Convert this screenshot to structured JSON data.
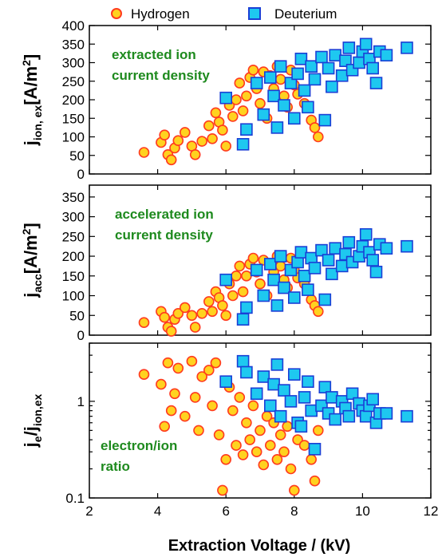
{
  "legend": {
    "position": "top",
    "items": [
      {
        "label": "Hydrogen",
        "marker": "circle",
        "fill": "#ffd21f",
        "stroke": "#ff3b1f"
      },
      {
        "label": "Deuterium",
        "marker": "square",
        "fill": "#1ec8f0",
        "stroke": "#1a3fd6"
      }
    ]
  },
  "xaxis": {
    "label": "Extraction Voltage / (kV)",
    "min": 2,
    "max": 12,
    "ticks": [
      2,
      4,
      6,
      8,
      10,
      12
    ]
  },
  "colors": {
    "hydrogen_fill": "#ffd21f",
    "hydrogen_edge": "#ff3b1f",
    "deuterium_fill": "#1ec8f0",
    "deuterium_edge": "#1a3fd6",
    "annotation": "#1e8a1e"
  },
  "chart_data": [
    {
      "type": "scatter",
      "ylabel_main": "j",
      "ylabel_sub": "ion, ex",
      "ylabel_unit": "[A/m",
      "ylabel_unit_sup": "2",
      "ylabel_unit_end": "]",
      "ylim": [
        0,
        400
      ],
      "yscale": "linear",
      "yticks": [
        0,
        50,
        100,
        150,
        200,
        250,
        300,
        350,
        400
      ],
      "annotation": [
        "extracted ion",
        "current density"
      ],
      "series": [
        {
          "name": "Hydrogen",
          "points": [
            [
              3.6,
              58
            ],
            [
              4.1,
              85
            ],
            [
              4.2,
              105
            ],
            [
              4.3,
              52
            ],
            [
              4.4,
              38
            ],
            [
              4.5,
              70
            ],
            [
              4.6,
              90
            ],
            [
              4.8,
              112
            ],
            [
              5.0,
              75
            ],
            [
              5.1,
              52
            ],
            [
              5.3,
              88
            ],
            [
              5.5,
              130
            ],
            [
              5.6,
              95
            ],
            [
              5.7,
              165
            ],
            [
              5.8,
              140
            ],
            [
              5.9,
              118
            ],
            [
              6.0,
              75
            ],
            [
              6.1,
              185
            ],
            [
              6.2,
              155
            ],
            [
              6.3,
              200
            ],
            [
              6.4,
              245
            ],
            [
              6.5,
              170
            ],
            [
              6.6,
              210
            ],
            [
              6.7,
              260
            ],
            [
              6.8,
              280
            ],
            [
              6.9,
              230
            ],
            [
              7.0,
              190
            ],
            [
              7.1,
              275
            ],
            [
              7.2,
              150
            ],
            [
              7.3,
              265
            ],
            [
              7.4,
              230
            ],
            [
              7.5,
              290
            ],
            [
              7.6,
              255
            ],
            [
              7.7,
              210
            ],
            [
              7.8,
              180
            ],
            [
              7.9,
              280
            ],
            [
              8.0,
              240
            ],
            [
              8.1,
              215
            ],
            [
              8.3,
              190
            ],
            [
              8.5,
              145
            ],
            [
              8.6,
              125
            ],
            [
              8.7,
              100
            ]
          ]
        },
        {
          "name": "Deuterium",
          "points": [
            [
              6.0,
              205
            ],
            [
              6.5,
              80
            ],
            [
              6.6,
              120
            ],
            [
              6.9,
              245
            ],
            [
              7.1,
              160
            ],
            [
              7.3,
              260
            ],
            [
              7.4,
              210
            ],
            [
              7.5,
              125
            ],
            [
              7.6,
              290
            ],
            [
              7.7,
              185
            ],
            [
              7.9,
              245
            ],
            [
              8.0,
              150
            ],
            [
              8.1,
              270
            ],
            [
              8.2,
              310
            ],
            [
              8.3,
              225
            ],
            [
              8.4,
              180
            ],
            [
              8.5,
              290
            ],
            [
              8.6,
              255
            ],
            [
              8.8,
              315
            ],
            [
              8.9,
              145
            ],
            [
              9.0,
              285
            ],
            [
              9.1,
              235
            ],
            [
              9.2,
              320
            ],
            [
              9.4,
              265
            ],
            [
              9.5,
              305
            ],
            [
              9.6,
              340
            ],
            [
              9.7,
              280
            ],
            [
              9.9,
              300
            ],
            [
              10.0,
              330
            ],
            [
              10.1,
              350
            ],
            [
              10.2,
              310
            ],
            [
              10.3,
              285
            ],
            [
              10.4,
              245
            ],
            [
              10.5,
              330
            ],
            [
              10.7,
              320
            ],
            [
              11.3,
              340
            ]
          ]
        }
      ]
    },
    {
      "type": "scatter",
      "ylabel_main": "j",
      "ylabel_sub": "acc",
      "ylabel_unit": "[A/m",
      "ylabel_unit_sup": "2",
      "ylabel_unit_end": "]",
      "ylim": [
        0,
        380
      ],
      "yscale": "linear",
      "yticks": [
        0,
        50,
        100,
        150,
        200,
        250,
        300,
        350
      ],
      "annotation": [
        "accelerated ion",
        "current density"
      ],
      "series": [
        {
          "name": "Hydrogen",
          "points": [
            [
              3.6,
              32
            ],
            [
              4.1,
              60
            ],
            [
              4.2,
              45
            ],
            [
              4.3,
              20
            ],
            [
              4.4,
              10
            ],
            [
              4.5,
              40
            ],
            [
              4.6,
              55
            ],
            [
              4.8,
              70
            ],
            [
              5.0,
              50
            ],
            [
              5.1,
              20
            ],
            [
              5.3,
              55
            ],
            [
              5.5,
              85
            ],
            [
              5.6,
              60
            ],
            [
              5.7,
              110
            ],
            [
              5.8,
              95
            ],
            [
              5.9,
              75
            ],
            [
              6.0,
              50
            ],
            [
              6.1,
              130
            ],
            [
              6.2,
              100
            ],
            [
              6.3,
              150
            ],
            [
              6.4,
              175
            ],
            [
              6.5,
              110
            ],
            [
              6.6,
              150
            ],
            [
              6.7,
              180
            ],
            [
              6.8,
              195
            ],
            [
              6.9,
              160
            ],
            [
              7.0,
              130
            ],
            [
              7.1,
              190
            ],
            [
              7.2,
              100
            ],
            [
              7.3,
              180
            ],
            [
              7.4,
              160
            ],
            [
              7.5,
              200
            ],
            [
              7.6,
              175
            ],
            [
              7.7,
              140
            ],
            [
              7.8,
              120
            ],
            [
              7.9,
              195
            ],
            [
              8.0,
              165
            ],
            [
              8.1,
              145
            ],
            [
              8.3,
              130
            ],
            [
              8.5,
              90
            ],
            [
              8.6,
              75
            ],
            [
              8.7,
              60
            ]
          ]
        },
        {
          "name": "Deuterium",
          "points": [
            [
              6.0,
              140
            ],
            [
              6.5,
              40
            ],
            [
              6.6,
              70
            ],
            [
              6.9,
              165
            ],
            [
              7.1,
              100
            ],
            [
              7.3,
              180
            ],
            [
              7.4,
              140
            ],
            [
              7.5,
              75
            ],
            [
              7.6,
              200
            ],
            [
              7.7,
              120
            ],
            [
              7.9,
              165
            ],
            [
              8.0,
              95
            ],
            [
              8.1,
              185
            ],
            [
              8.2,
              210
            ],
            [
              8.3,
              150
            ],
            [
              8.4,
              115
            ],
            [
              8.5,
              195
            ],
            [
              8.6,
              170
            ],
            [
              8.8,
              215
            ],
            [
              8.9,
              90
            ],
            [
              9.0,
              190
            ],
            [
              9.1,
              155
            ],
            [
              9.2,
              220
            ],
            [
              9.4,
              175
            ],
            [
              9.5,
              205
            ],
            [
              9.6,
              235
            ],
            [
              9.7,
              185
            ],
            [
              9.9,
              200
            ],
            [
              10.0,
              225
            ],
            [
              10.1,
              255
            ],
            [
              10.2,
              210
            ],
            [
              10.3,
              190
            ],
            [
              10.4,
              160
            ],
            [
              10.5,
              230
            ],
            [
              10.7,
              220
            ],
            [
              11.3,
              225
            ]
          ]
        }
      ]
    },
    {
      "type": "scatter",
      "ylabel_main": "j",
      "ylabel_sub": "e",
      "ylabel_unit": "/j",
      "ylabel_unit_sub": "ion,ex",
      "ylim": [
        0.1,
        4
      ],
      "yscale": "log",
      "yticks": [
        0.1,
        1
      ],
      "annotation": [
        "electron/ion",
        "ratio"
      ],
      "series": [
        {
          "name": "Hydrogen",
          "points": [
            [
              3.6,
              1.9
            ],
            [
              4.1,
              1.5
            ],
            [
              4.2,
              0.55
            ],
            [
              4.3,
              2.5
            ],
            [
              4.4,
              0.8
            ],
            [
              4.5,
              1.2
            ],
            [
              4.6,
              2.2
            ],
            [
              4.8,
              0.7
            ],
            [
              5.0,
              2.6
            ],
            [
              5.1,
              1.1
            ],
            [
              5.2,
              0.5
            ],
            [
              5.3,
              1.8
            ],
            [
              5.5,
              2.1
            ],
            [
              5.6,
              0.9
            ],
            [
              5.7,
              2.5
            ],
            [
              5.8,
              0.45
            ],
            [
              5.9,
              0.12
            ],
            [
              6.0,
              0.25
            ],
            [
              6.1,
              1.4
            ],
            [
              6.2,
              0.8
            ],
            [
              6.3,
              0.35
            ],
            [
              6.4,
              1.1
            ],
            [
              6.5,
              0.28
            ],
            [
              6.6,
              0.6
            ],
            [
              6.7,
              0.4
            ],
            [
              6.8,
              0.9
            ],
            [
              6.9,
              0.3
            ],
            [
              7.0,
              0.5
            ],
            [
              7.1,
              0.22
            ],
            [
              7.2,
              0.7
            ],
            [
              7.3,
              0.35
            ],
            [
              7.4,
              0.6
            ],
            [
              7.5,
              0.25
            ],
            [
              7.6,
              0.45
            ],
            [
              7.7,
              0.3
            ],
            [
              7.8,
              0.55
            ],
            [
              7.9,
              0.2
            ],
            [
              8.0,
              0.12
            ],
            [
              8.1,
              0.4
            ],
            [
              8.3,
              0.35
            ],
            [
              8.5,
              0.25
            ],
            [
              8.6,
              0.15
            ],
            [
              8.7,
              0.5
            ]
          ]
        },
        {
          "name": "Deuterium",
          "points": [
            [
              6.0,
              1.6
            ],
            [
              6.5,
              2.6
            ],
            [
              6.6,
              2.0
            ],
            [
              6.9,
              1.2
            ],
            [
              7.1,
              1.8
            ],
            [
              7.3,
              0.9
            ],
            [
              7.4,
              1.5
            ],
            [
              7.5,
              2.4
            ],
            [
              7.6,
              0.7
            ],
            [
              7.7,
              1.3
            ],
            [
              7.9,
              1.0
            ],
            [
              8.0,
              1.9
            ],
            [
              8.1,
              0.6
            ],
            [
              8.2,
              0.55
            ],
            [
              8.3,
              1.1
            ],
            [
              8.4,
              1.6
            ],
            [
              8.5,
              0.8
            ],
            [
              8.6,
              0.32
            ],
            [
              8.8,
              0.9
            ],
            [
              8.9,
              1.4
            ],
            [
              9.0,
              0.75
            ],
            [
              9.1,
              1.1
            ],
            [
              9.2,
              0.65
            ],
            [
              9.4,
              1.0
            ],
            [
              9.5,
              0.85
            ],
            [
              9.6,
              0.7
            ],
            [
              9.7,
              1.2
            ],
            [
              9.9,
              0.95
            ],
            [
              10.0,
              0.8
            ],
            [
              10.1,
              0.7
            ],
            [
              10.2,
              0.9
            ],
            [
              10.3,
              1.05
            ],
            [
              10.4,
              0.6
            ],
            [
              10.5,
              0.75
            ],
            [
              10.7,
              0.75
            ],
            [
              11.3,
              0.7
            ]
          ]
        }
      ]
    }
  ]
}
